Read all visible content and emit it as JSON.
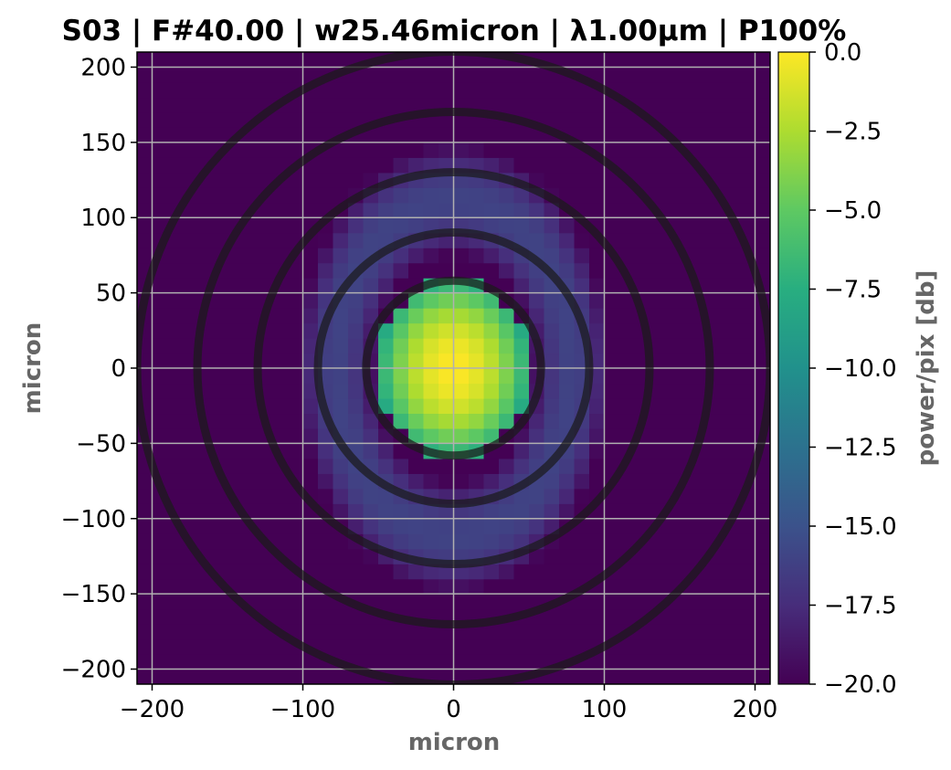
{
  "chart_data": {
    "type": "heatmap",
    "title": "S03 | F#40.00 | w25.46micron | λ1.00μm | P100%",
    "xlabel": "micron",
    "ylabel": "micron",
    "colorbar_label": "power/pix [db]",
    "xlim": [
      -210,
      210
    ],
    "ylim": [
      -210,
      210
    ],
    "x_ticks": [
      -200,
      -100,
      0,
      100,
      200
    ],
    "y_ticks": [
      -200,
      -150,
      -100,
      -50,
      0,
      50,
      100,
      150,
      200
    ],
    "x_tick_labels": [
      "−200",
      "−100",
      "0",
      "100",
      "200"
    ],
    "y_tick_labels": [
      "−200",
      "−150",
      "−100",
      "−50",
      "0",
      "50",
      "100",
      "150",
      "200"
    ],
    "colorbar_range": [
      -20,
      0
    ],
    "colorbar_ticks": [
      0,
      -2.5,
      -5,
      -7.5,
      -10,
      -12.5,
      -15,
      -17.5,
      -20
    ],
    "colorbar_tick_labels": [
      "0.0",
      "−2.5",
      "−5.0",
      "−7.5",
      "−10.0",
      "−12.5",
      "−15.0",
      "−17.5",
      "−20.0"
    ],
    "colormap": "viridis",
    "grid": true,
    "pixel_size_micron": 10,
    "peak_db": 0,
    "spot": {
      "center": [
        0,
        0
      ],
      "core_radius_x": 45,
      "core_radius_y": 55,
      "ring_radius_x": 78,
      "ring_radius_y": 112,
      "ring_level_db": -16,
      "background_db": -20
    },
    "circles_radii_micron": [
      58,
      90,
      130,
      170,
      210
    ],
    "circle_color": "#1a1a1a"
  }
}
